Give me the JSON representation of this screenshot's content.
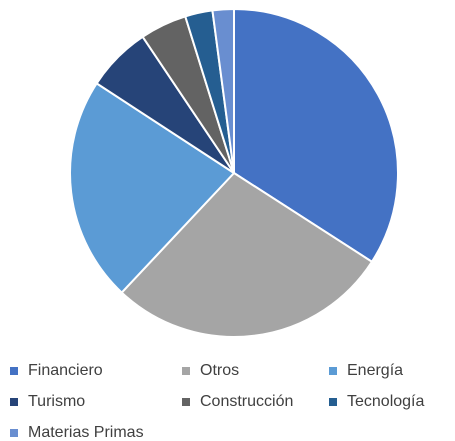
{
  "chart_data": {
    "type": "pie",
    "categories": [
      "Financiero",
      "Otros",
      "Energía",
      "Turismo",
      "Construcción",
      "Tecnología",
      "Materias Primas"
    ],
    "values": [
      34.1,
      27.9,
      22.2,
      6.4,
      4.6,
      2.7,
      2.1
    ],
    "colors": [
      "#4472c4",
      "#a5a5a5",
      "#5b9bd5",
      "#264478",
      "#636363",
      "#255e91",
      "#698ed0"
    ],
    "legend": "bottom"
  }
}
